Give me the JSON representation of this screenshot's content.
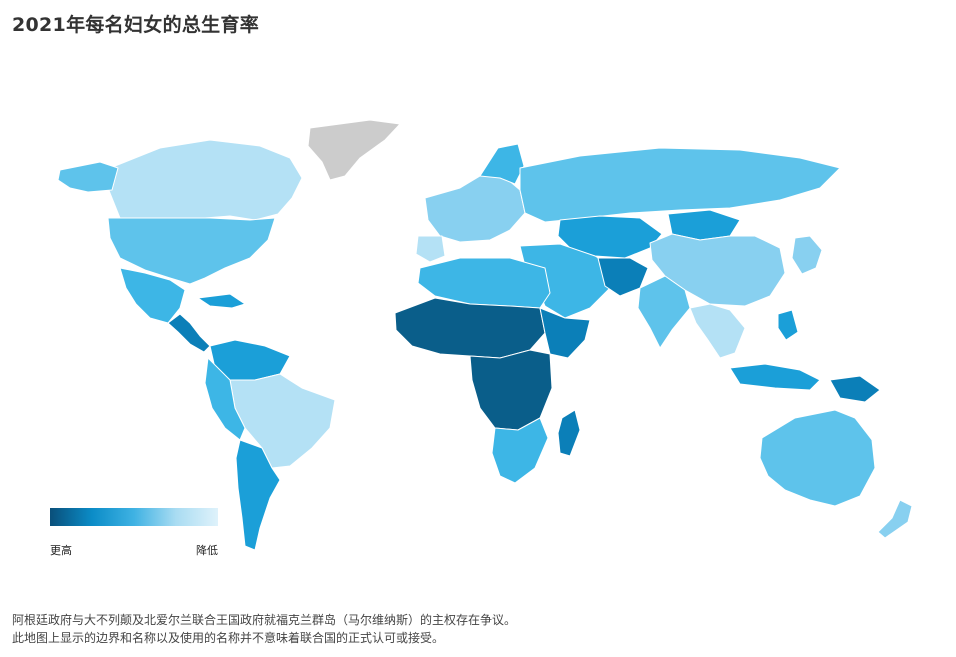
{
  "header": {
    "title": "2021年每名妇女的总生育率"
  },
  "legend": {
    "high_label": "更高",
    "low_label": "降低",
    "gradient": [
      "#0a4f7a",
      "#0b8cc7",
      "#3fb2e3",
      "#a9dcf2",
      "#dff2fb"
    ]
  },
  "colors": {
    "highest": "#0a5e8a",
    "very_high": "#0b7fb8",
    "high": "#1b9fd8",
    "medium": "#3db6e6",
    "low": "#5ec3eb",
    "lower": "#88d0f0",
    "lowest": "#b4e1f5",
    "no_data": "#cccccc",
    "border": "#ffffff"
  },
  "footer": {
    "note_1": "阿根廷政府与大不列颠及北爱尔兰联合王国政府就福克兰群岛（马尔维纳斯）的主权存在争议。",
    "note_2": "此地图上显示的边界和名称以及使用的名称并不意味着联合国的正式认可或接受。"
  }
}
